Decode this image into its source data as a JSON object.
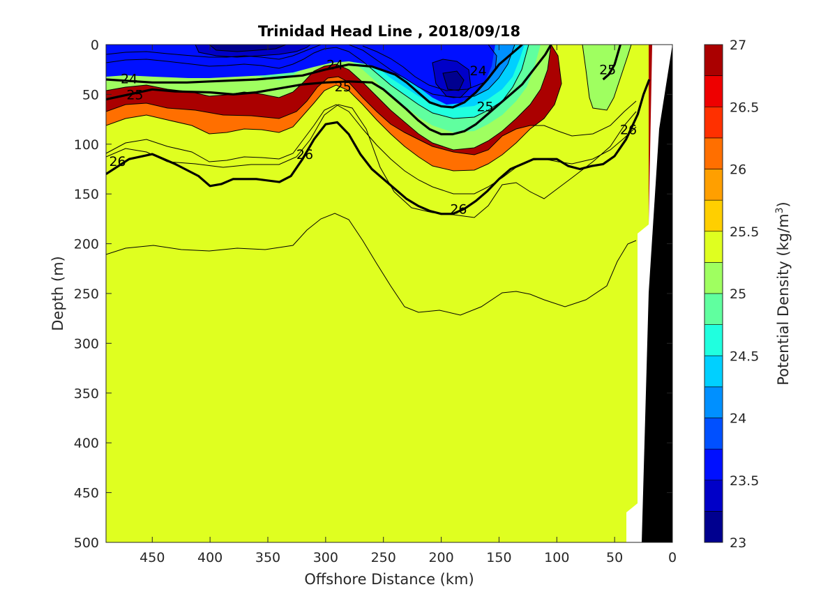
{
  "chart_data": {
    "type": "contour",
    "title": "Trinidad Head Line , 2018/09/18",
    "xlabel": "Offshore Distance (km)",
    "ylabel": "Depth (m)",
    "colorbar_label_main": "Potential Density (kg/m",
    "colorbar_label_sup": "3",
    "colorbar_label_end": ")",
    "xlim": [
      490,
      0
    ],
    "ylim": [
      0,
      500
    ],
    "x_ticks": [
      450,
      400,
      350,
      300,
      250,
      200,
      150,
      100,
      50,
      0
    ],
    "x_tick_labels": [
      "450",
      "400",
      "350",
      "300",
      "250",
      "200",
      "150",
      "100",
      "50",
      "0"
    ],
    "y_ticks": [
      0,
      50,
      100,
      150,
      200,
      250,
      300,
      350,
      400,
      450,
      500
    ],
    "y_tick_labels": [
      "0",
      "50",
      "100",
      "150",
      "200",
      "250",
      "300",
      "350",
      "400",
      "450",
      "500"
    ],
    "colorbar_ticks": [
      27,
      26.5,
      26,
      25.5,
      25,
      24.5,
      24,
      23.5,
      23
    ],
    "colorbar_tick_labels": [
      "27",
      "26.5",
      "26",
      "25.5",
      "25",
      "24.5",
      "24",
      "23.5",
      "23"
    ],
    "color_levels": [
      23,
      23.25,
      23.5,
      23.75,
      24,
      24.25,
      24.5,
      24.75,
      25,
      25.25,
      25.5,
      25.75,
      26,
      26.25,
      26.5,
      26.75,
      27
    ],
    "colormap": [
      "#00008f",
      "#0000c8",
      "#0010ff",
      "#0050ff",
      "#0090ff",
      "#00d0ff",
      "#20ffdf",
      "#60ff9f",
      "#9fff60",
      "#dfff20",
      "#ffcf00",
      "#ff9f00",
      "#ff6f00",
      "#ff3000",
      "#ee0000",
      "#aa0000"
    ],
    "labeled_contours": [
      {
        "level": 24,
        "label": "24",
        "x": [
          490,
          450,
          420,
          400,
          380,
          360,
          340,
          320,
          300,
          280,
          260,
          250,
          240,
          230,
          220,
          210,
          200,
          190,
          180,
          170,
          160,
          150,
          140,
          130
        ],
        "y": [
          35,
          38,
          38,
          37,
          36,
          35,
          33,
          31,
          25,
          20,
          22,
          26,
          30,
          38,
          48,
          58,
          62,
          63,
          58,
          48,
          35,
          20,
          10,
          0
        ]
      },
      {
        "level": 25,
        "label": "25",
        "x": [
          490,
          470,
          450,
          430,
          400,
          380,
          360,
          340,
          320,
          300,
          280,
          260,
          250,
          240,
          230,
          220,
          210,
          200,
          190,
          180,
          170,
          160,
          150,
          140,
          130,
          120,
          110,
          105
        ],
        "y": [
          55,
          50,
          45,
          47,
          48,
          50,
          48,
          44,
          40,
          38,
          37,
          38,
          45,
          55,
          65,
          76,
          85,
          90,
          90,
          87,
          80,
          70,
          60,
          50,
          40,
          25,
          10,
          0
        ]
      },
      {
        "level": 25,
        "label": "25",
        "x": [
          60,
          55,
          50,
          45
        ],
        "y": [
          35,
          30,
          20,
          0
        ]
      },
      {
        "level": 26,
        "label": "26",
        "x": [
          490,
          470,
          450,
          430,
          410,
          400,
          390,
          380,
          360,
          340,
          330,
          320,
          310,
          300,
          290,
          280,
          270,
          260,
          250,
          240,
          230,
          220,
          210,
          200,
          190,
          180,
          170,
          160,
          150,
          140,
          130,
          120,
          110,
          100,
          90,
          80,
          70,
          60,
          50,
          40,
          30,
          25,
          20
        ],
        "y": [
          130,
          115,
          110,
          120,
          132,
          142,
          140,
          135,
          135,
          138,
          132,
          115,
          95,
          80,
          78,
          90,
          110,
          125,
          135,
          145,
          155,
          162,
          167,
          170,
          170,
          165,
          157,
          147,
          135,
          125,
          120,
          115,
          115,
          115,
          122,
          125,
          122,
          120,
          112,
          95,
          70,
          50,
          35
        ]
      }
    ],
    "land_mask_coast_depths_x": [
      30,
      25,
      20,
      15,
      10,
      5,
      0
    ],
    "grid": false
  }
}
